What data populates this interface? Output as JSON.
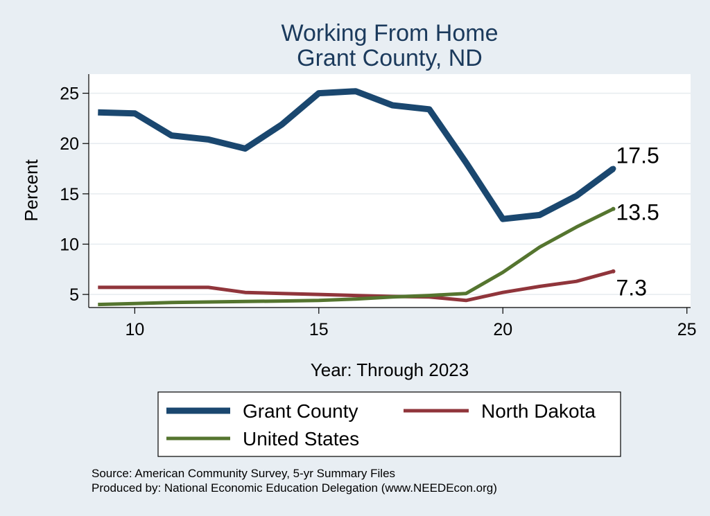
{
  "chart_data": {
    "type": "line",
    "title": "Working From Home",
    "subtitle": "Grant County, ND",
    "xlabel": "Year: Through 2023",
    "ylabel": "Percent",
    "xlim": [
      8.75,
      25.1
    ],
    "ylim": [
      3.7,
      26.9
    ],
    "xticks": [
      10,
      15,
      20,
      25
    ],
    "yticks": [
      5,
      10,
      15,
      20,
      25
    ],
    "grid": true,
    "legend_position": "bottom",
    "x": [
      9,
      10,
      11,
      12,
      13,
      14,
      15,
      16,
      17,
      18,
      19,
      20,
      21,
      22,
      23
    ],
    "series": [
      {
        "name": "Grant County",
        "color": "#1a476f",
        "values": [
          23.1,
          23.0,
          20.8,
          20.4,
          19.5,
          21.9,
          25.0,
          25.2,
          23.8,
          23.4,
          18.1,
          12.5,
          12.9,
          14.8,
          17.5
        ],
        "end_label": "17.5"
      },
      {
        "name": "North Dakota",
        "color": "#90353b",
        "values": [
          5.7,
          5.7,
          5.7,
          5.7,
          5.2,
          5.1,
          5.0,
          4.9,
          4.8,
          4.75,
          4.4,
          5.2,
          5.8,
          6.3,
          7.3
        ],
        "end_label": "7.3"
      },
      {
        "name": "United States",
        "color": "#55752f",
        "values": [
          4.0,
          4.1,
          4.2,
          4.25,
          4.3,
          4.35,
          4.4,
          4.55,
          4.75,
          4.9,
          5.1,
          7.2,
          9.7,
          11.7,
          13.5
        ],
        "end_label": "13.5"
      }
    ]
  },
  "source_lines": [
    "Source: American Community Survey, 5-yr Summary Files",
    "Produced by: National Economic Education Delegation (www.NEEDEcon.org)"
  ]
}
